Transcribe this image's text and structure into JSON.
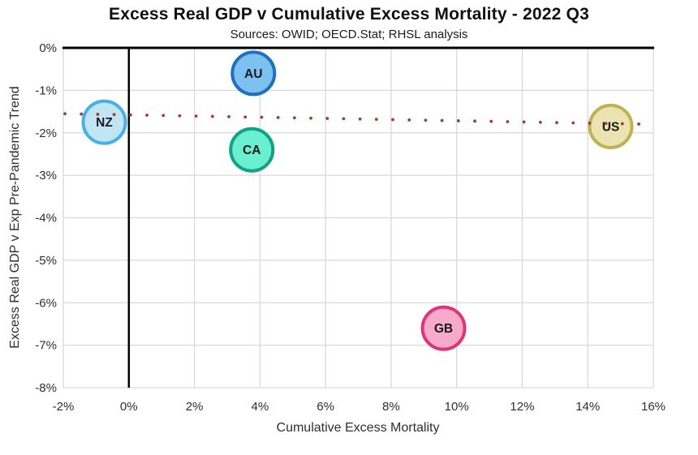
{
  "chart_data": {
    "type": "scatter",
    "title": "Excess Real GDP v Cumulative Excess Mortality - 2022 Q3",
    "subtitle": "Sources: OWID; OECD.Stat; RHSL analysis",
    "xlabel": "Cumulative Excess Mortality",
    "ylabel": "Excess Real GDP v Exp Pre-Pandemic Trend",
    "xlim": [
      -2,
      16
    ],
    "ylim": [
      -8,
      0
    ],
    "grid": true,
    "legend": "none",
    "gridline_color": "#d9d9d9",
    "zero_axis_color": "#000000",
    "tick_label_color": "#2e2e2e",
    "bubble_label_color": "#1a1a1a",
    "x_ticks": {
      "values": [
        -2,
        0,
        2,
        4,
        6,
        8,
        10,
        12,
        14,
        16
      ],
      "labels": [
        "-2%",
        "0%",
        "2%",
        "4%",
        "6%",
        "8%",
        "10%",
        "12%",
        "14%",
        "16%"
      ]
    },
    "y_ticks": {
      "values": [
        0,
        -1,
        -2,
        -3,
        -4,
        -5,
        -6,
        -7,
        -8
      ],
      "labels": [
        "0%",
        "-1%",
        "-2%",
        "-3%",
        "-4%",
        "-5%",
        "-6%",
        "-7%",
        "-8%"
      ]
    },
    "points": [
      {
        "label": "NZ",
        "x": -0.75,
        "y": -1.75,
        "fill": "#c2e5f6",
        "stroke": "#45b1e7"
      },
      {
        "label": "AU",
        "x": 3.8,
        "y": -0.6,
        "fill": "#7ec0ef",
        "stroke": "#1d71be"
      },
      {
        "label": "CA",
        "x": 3.75,
        "y": -2.4,
        "fill": "#6befd1",
        "stroke": "#12a184"
      },
      {
        "label": "GB",
        "x": 9.6,
        "y": -6.6,
        "fill": "#f6abcd",
        "stroke": "#e03478"
      },
      {
        "label": "US",
        "x": 14.7,
        "y": -1.85,
        "fill": "#ebe3b2",
        "stroke": "#bdb351"
      }
    ],
    "trendline": {
      "style": "dotted",
      "color": "#a33b33",
      "x1": -2,
      "y1": -1.55,
      "x2": 16,
      "y2": -1.8
    }
  }
}
